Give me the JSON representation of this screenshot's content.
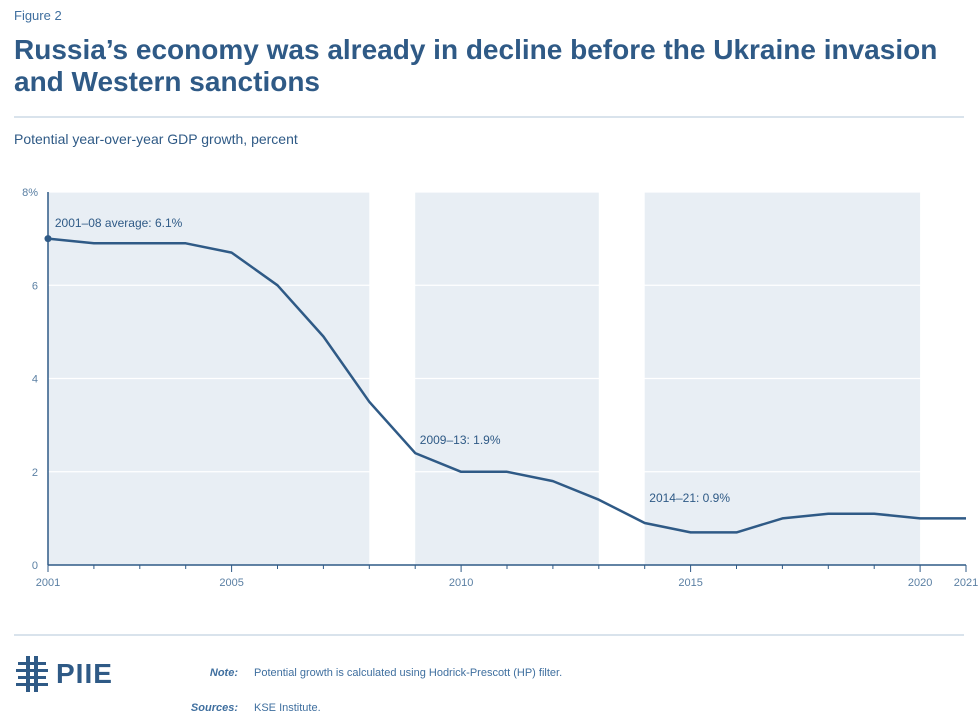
{
  "figure_label": "Figure 2",
  "title": "Russia’s economy was already in decline before the Ukraine invasion and Western sanctions",
  "subtitle": "Potential year-over-year GDP growth, percent",
  "note_key": "Note:",
  "note_text": "Potential growth is calculated using Hodrick-Prescott (HP) filter.",
  "sources_key": "Sources:",
  "sources_text": "KSE Institute.",
  "logo_text": "PIIE",
  "colors": {
    "line": "#2f5a86",
    "shade": "#e8eef4",
    "grid": "#ffffff",
    "text": "#2f5a86"
  },
  "chart_data": {
    "type": "line",
    "title": "Russia’s economy was already in decline before the Ukraine invasion and Western sanctions",
    "ylabel": "Potential year-over-year GDP growth, percent",
    "xlim": [
      2001,
      2021
    ],
    "ylim": [
      0,
      8
    ],
    "y_ticks": [
      {
        "value": 0,
        "label": "0"
      },
      {
        "value": 2,
        "label": "2"
      },
      {
        "value": 4,
        "label": "4"
      },
      {
        "value": 6,
        "label": "6"
      },
      {
        "value": 8,
        "label": "8%"
      }
    ],
    "x_ticks": [
      {
        "value": 2001,
        "label": "2001"
      },
      {
        "value": 2005,
        "label": "2005"
      },
      {
        "value": 2010,
        "label": "2010"
      },
      {
        "value": 2015,
        "label": "2015"
      },
      {
        "value": 2020,
        "label": "2020"
      },
      {
        "value": 2021,
        "label": "2021"
      }
    ],
    "shaded_periods": [
      {
        "start": 2001,
        "end": 2008
      },
      {
        "start": 2009,
        "end": 2013
      },
      {
        "start": 2014,
        "end": 2020
      }
    ],
    "series": [
      {
        "x": [
          2001,
          2002,
          2003,
          2004,
          2005,
          2006,
          2007,
          2008,
          2009,
          2010,
          2011,
          2012,
          2013,
          2014,
          2015,
          2016,
          2017,
          2018,
          2019,
          2020,
          2021
        ],
        "values": [
          7.0,
          6.9,
          6.9,
          6.9,
          6.7,
          6.0,
          4.9,
          3.5,
          2.4,
          2.0,
          2.0,
          1.8,
          1.4,
          0.9,
          0.7,
          0.7,
          1.0,
          1.1,
          1.1,
          1.0,
          1.0
        ]
      }
    ],
    "annotations": [
      {
        "text": "2001–08 average: 6.1%",
        "x": 2001.15,
        "y": 7.25
      },
      {
        "text": "2009–13: 1.9%",
        "x": 2009.1,
        "y": 2.6
      },
      {
        "text": "2014–21: 0.9%",
        "x": 2014.1,
        "y": 1.35
      }
    ],
    "grid": true,
    "legend": "none"
  }
}
